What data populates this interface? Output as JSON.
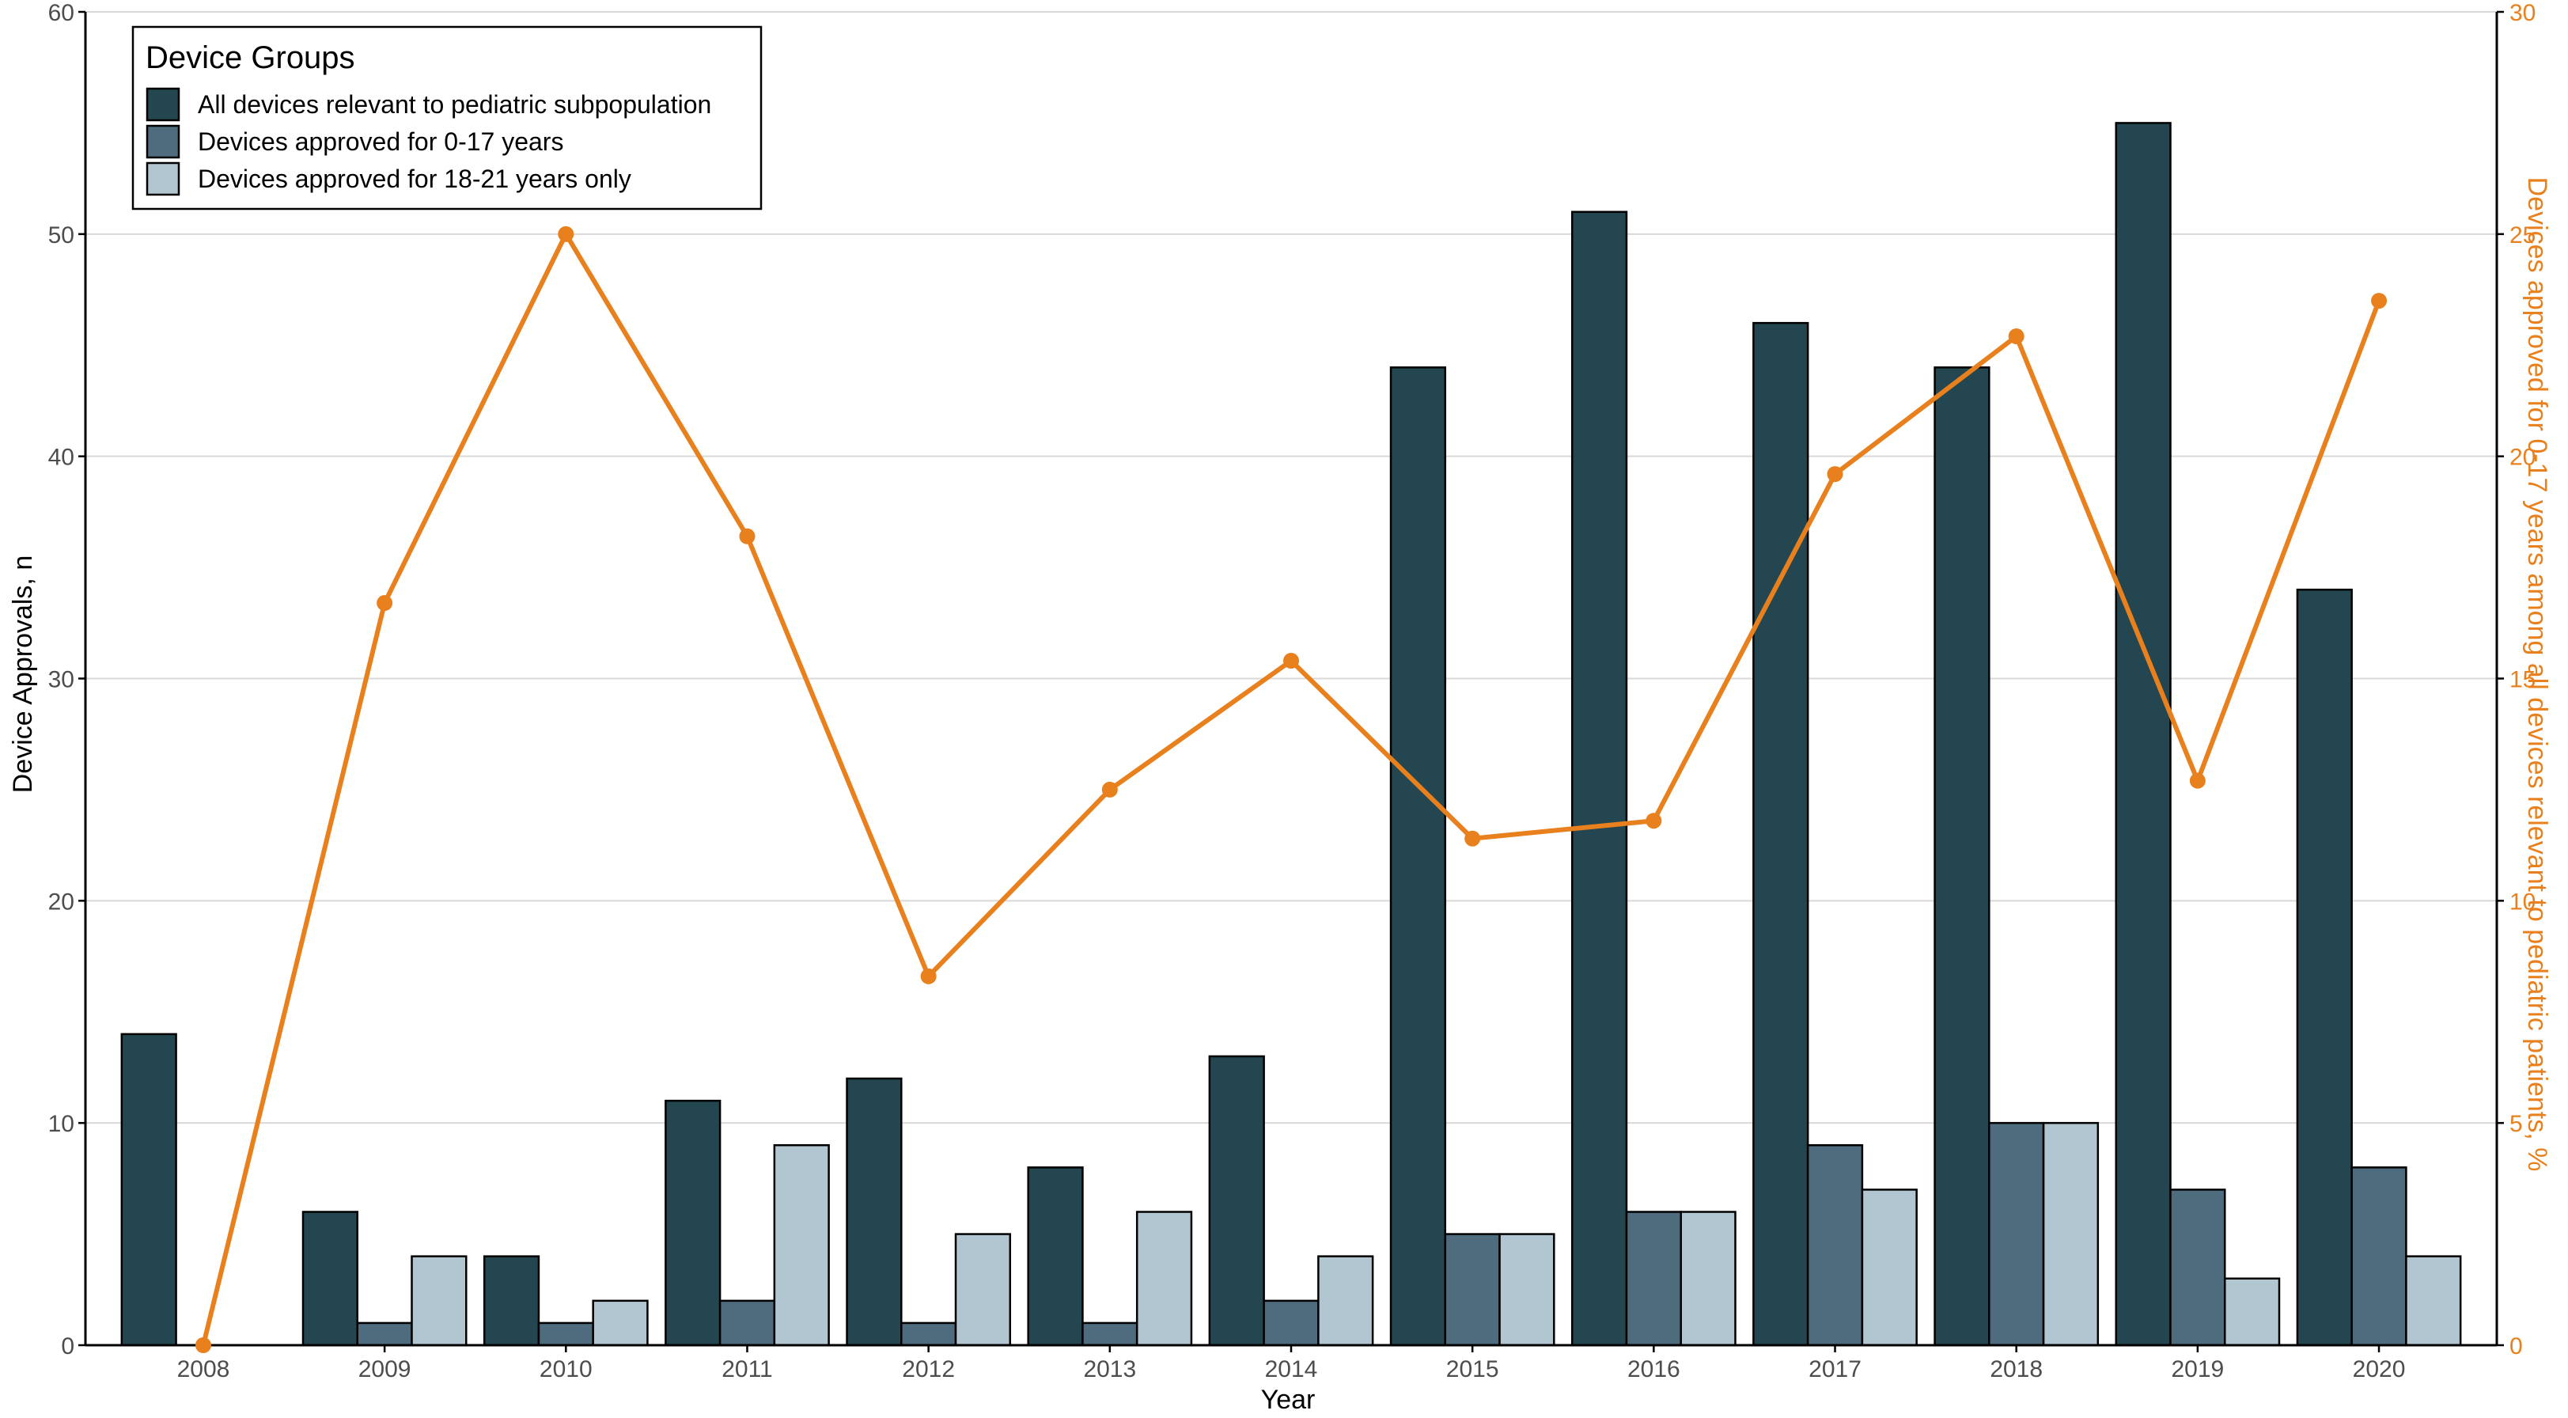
{
  "chart_data": {
    "type": "bar",
    "categories": [
      "2008",
      "2009",
      "2010",
      "2011",
      "2012",
      "2013",
      "2014",
      "2015",
      "2016",
      "2017",
      "2018",
      "2019",
      "2020"
    ],
    "series": [
      {
        "name": "All devices relevant to pediatric subpopulation",
        "values": [
          14,
          6,
          4,
          11,
          12,
          8,
          13,
          44,
          51,
          46,
          44,
          55,
          34
        ],
        "color": "#234650"
      },
      {
        "name": "Devices approved for 0-17 years",
        "values": [
          0,
          1,
          1,
          2,
          1,
          1,
          2,
          5,
          6,
          9,
          10,
          7,
          8
        ],
        "color": "#4e6c7d"
      },
      {
        "name": "Devices approved for 18-21 years only",
        "values": [
          0,
          4,
          2,
          9,
          5,
          6,
          4,
          5,
          6,
          7,
          10,
          3,
          4
        ],
        "color": "#b2c6d1"
      }
    ],
    "line_series": {
      "values": [
        0,
        16.7,
        25,
        18.2,
        8.3,
        12.5,
        15.4,
        11.4,
        11.8,
        19.6,
        22.7,
        12.7,
        23.5
      ],
      "color": "#e8801e",
      "axis": "right"
    },
    "title": "",
    "xlabel": "Year",
    "ylabel": "Device Approvals, n",
    "ylabel_right": "Devices approved for 0-17 years among all devices relevant to pediatric patients, %",
    "ylim": [
      0,
      60
    ],
    "ylim_right": [
      0,
      30
    ],
    "yticks": [
      0,
      10,
      20,
      30,
      40,
      50,
      60
    ],
    "yticks_right": [
      0,
      5,
      10,
      15,
      20,
      25,
      30
    ],
    "grid": true,
    "legend": {
      "title": "Device Groups",
      "placement": "top-left"
    }
  }
}
